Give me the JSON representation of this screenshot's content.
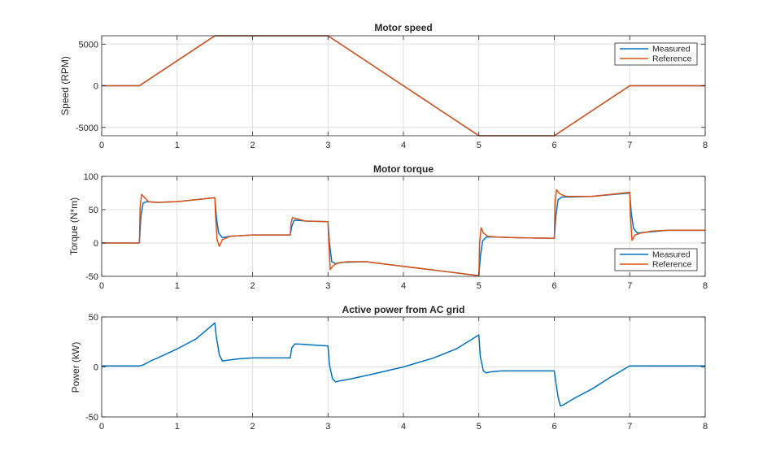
{
  "colors": {
    "measured": "#0072BD",
    "reference": "#D95319",
    "grid": "#dfdfdf",
    "axis": "#262626"
  },
  "chart_data": [
    {
      "type": "line",
      "title": "Motor speed",
      "xlabel": "",
      "ylabel": "Speed (RPM)",
      "xlim": [
        0,
        8
      ],
      "ylim": [
        -6000,
        6000
      ],
      "xticks": [
        0,
        1,
        2,
        3,
        4,
        5,
        6,
        7,
        8
      ],
      "yticks": [
        -5000,
        0,
        5000
      ],
      "grid": true,
      "legend": "top-right",
      "series": [
        {
          "name": "Measured",
          "color": "#0072BD",
          "x": [
            0,
            0.5,
            1.5,
            3.0,
            5.0,
            6.0,
            7.0,
            8.0
          ],
          "y": [
            0,
            0,
            6000,
            6000,
            -6000,
            -6000,
            0,
            0
          ]
        },
        {
          "name": "Reference",
          "color": "#D95319",
          "x": [
            0,
            0.5,
            1.5,
            3.0,
            5.0,
            6.0,
            7.0,
            8.0
          ],
          "y": [
            0,
            0,
            6000,
            6000,
            -6000,
            -6000,
            0,
            0
          ]
        }
      ]
    },
    {
      "type": "line",
      "title": "Motor torque",
      "xlabel": "",
      "ylabel": "Torque (N*m)",
      "xlim": [
        0,
        8
      ],
      "ylim": [
        -50,
        100
      ],
      "xticks": [
        0,
        1,
        2,
        3,
        4,
        5,
        6,
        7,
        8
      ],
      "yticks": [
        -50,
        0,
        50,
        100
      ],
      "grid": true,
      "legend": "bottom-right",
      "series": [
        {
          "name": "Measured",
          "color": "#0072BD",
          "x": [
            0,
            0.5,
            0.52,
            0.55,
            0.6,
            0.75,
            1.0,
            1.5,
            1.52,
            1.55,
            1.6,
            1.7,
            2.0,
            2.5,
            2.52,
            2.55,
            2.6,
            2.7,
            3.0,
            3.02,
            3.05,
            3.1,
            3.2,
            3.5,
            4.0,
            4.5,
            5.0,
            5.02,
            5.05,
            5.1,
            5.2,
            5.5,
            6.0,
            6.02,
            6.05,
            6.1,
            6.2,
            6.5,
            7.0,
            7.02,
            7.05,
            7.1,
            7.2,
            7.5,
            8.0
          ],
          "y": [
            0,
            0,
            40,
            60,
            62,
            61,
            62,
            68,
            40,
            15,
            8,
            10,
            12,
            12,
            25,
            34,
            34,
            33,
            32,
            0,
            -28,
            -31,
            -29,
            -28,
            -35,
            -42,
            -49,
            -20,
            3,
            9,
            9,
            8,
            7,
            40,
            65,
            69,
            69,
            70,
            75,
            45,
            22,
            15,
            16,
            19,
            19
          ]
        },
        {
          "name": "Reference",
          "color": "#D95319",
          "x": [
            0,
            0.5,
            0.51,
            0.53,
            0.57,
            0.62,
            0.7,
            1.0,
            1.5,
            1.51,
            1.53,
            1.56,
            1.6,
            1.7,
            2.0,
            2.5,
            2.51,
            2.53,
            2.6,
            2.7,
            3.0,
            3.01,
            3.03,
            3.06,
            3.12,
            3.25,
            3.5,
            4.0,
            4.5,
            4.99,
            5.0,
            5.01,
            5.03,
            5.06,
            5.12,
            5.25,
            5.5,
            6.0,
            6.01,
            6.03,
            6.07,
            6.15,
            6.3,
            6.5,
            7.0,
            7.01,
            7.03,
            7.07,
            7.15,
            7.3,
            7.5,
            8.0
          ],
          "y": [
            0,
            0,
            55,
            73,
            68,
            62,
            61,
            62,
            68,
            40,
            5,
            -5,
            5,
            10,
            12,
            12,
            30,
            38,
            36,
            33,
            32,
            5,
            -40,
            -35,
            -30,
            -28,
            -28,
            -35,
            -42,
            -49,
            -49,
            0,
            23,
            15,
            10,
            9,
            8,
            7,
            60,
            80,
            74,
            70,
            70,
            70,
            76,
            40,
            4,
            12,
            15,
            18,
            19,
            19
          ]
        }
      ]
    },
    {
      "type": "line",
      "title": "Active power from AC grid",
      "xlabel": "",
      "ylabel": "Power (kW)",
      "xlim": [
        0,
        8
      ],
      "ylim": [
        -50,
        50
      ],
      "xticks": [
        0,
        1,
        2,
        3,
        4,
        5,
        6,
        7,
        8
      ],
      "yticks": [
        -50,
        0,
        50
      ],
      "grid": true,
      "legend": "none",
      "series": [
        {
          "name": "",
          "color": "#0072BD",
          "x": [
            0,
            0.5,
            0.55,
            0.65,
            0.8,
            1.0,
            1.25,
            1.5,
            1.52,
            1.56,
            1.6,
            1.65,
            1.8,
            2.0,
            2.5,
            2.52,
            2.56,
            2.6,
            2.8,
            3.0,
            3.02,
            3.06,
            3.1,
            3.15,
            3.3,
            3.6,
            4.0,
            4.4,
            4.7,
            5.0,
            5.02,
            5.06,
            5.1,
            5.15,
            5.3,
            5.6,
            6.0,
            6.02,
            6.05,
            6.08,
            6.12,
            6.25,
            6.5,
            6.75,
            7.0,
            7.1,
            8.0
          ],
          "y": [
            1,
            1,
            2,
            6,
            11,
            18,
            28,
            44,
            30,
            12,
            6,
            6.5,
            8,
            9,
            9,
            19,
            23,
            23,
            22,
            21,
            2,
            -12,
            -15,
            -14,
            -12,
            -7,
            0,
            9,
            18,
            32,
            10,
            -4,
            -6,
            -5,
            -4,
            -4,
            -4,
            -15,
            -30,
            -39,
            -38,
            -32,
            -22,
            -10,
            1,
            1,
            1
          ]
        }
      ]
    }
  ],
  "legend": {
    "measured_label": "Measured",
    "reference_label": "Reference"
  }
}
